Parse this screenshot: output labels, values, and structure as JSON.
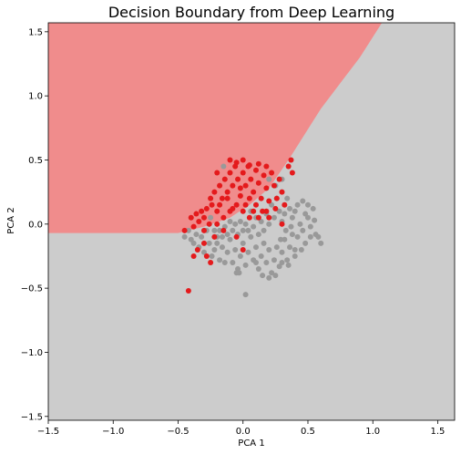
{
  "chart_data": {
    "type": "scatter",
    "title": "Decision Boundary from Deep Learning",
    "xlabel": "PCA 1",
    "ylabel": "PCA 2",
    "xlim": [
      -1.5,
      1.63
    ],
    "ylim": [
      -1.53,
      1.57
    ],
    "x_ticks": [
      "−1.5",
      "−1.0",
      "−0.5",
      "0.0",
      "0.5",
      "1.0",
      "1.5"
    ],
    "x_tick_values": [
      -1.5,
      -1.0,
      -0.5,
      0.0,
      0.5,
      1.0,
      1.5
    ],
    "y_ticks": [
      "1.5",
      "1.0",
      "0.5",
      "0.0",
      "−0.5",
      "−1.0",
      "−1.5"
    ],
    "y_tick_values": [
      1.5,
      1.0,
      0.5,
      0.0,
      -0.5,
      -1.0,
      -1.5
    ],
    "grid": false,
    "decision_regions": {
      "class_1_color": "#f08c8c",
      "class_0_color": "#cccccc",
      "boundary": [
        [
          -1.5,
          -0.07
        ],
        [
          -0.5,
          -0.07
        ],
        [
          -0.3,
          -0.02
        ],
        [
          -0.1,
          0.05
        ],
        [
          0.05,
          0.15
        ],
        [
          0.2,
          0.28
        ],
        [
          0.35,
          0.5
        ],
        [
          0.6,
          0.9
        ],
        [
          0.9,
          1.3
        ],
        [
          1.07,
          1.57
        ]
      ]
    },
    "series": [
      {
        "color": "#999999",
        "points": [
          [
            -0.45,
            -0.1
          ],
          [
            -0.42,
            -0.05
          ],
          [
            -0.4,
            -0.12
          ],
          [
            -0.38,
            -0.15
          ],
          [
            -0.36,
            -0.08
          ],
          [
            -0.34,
            -0.18
          ],
          [
            -0.32,
            -0.1
          ],
          [
            -0.3,
            -0.22
          ],
          [
            -0.28,
            -0.05
          ],
          [
            -0.26,
            -0.15
          ],
          [
            -0.24,
            -0.25
          ],
          [
            -0.22,
            -0.2
          ],
          [
            -0.2,
            -0.1
          ],
          [
            -0.18,
            -0.28
          ],
          [
            -0.16,
            -0.18
          ],
          [
            -0.14,
            -0.3
          ],
          [
            -0.12,
            -0.22
          ],
          [
            -0.1,
            -0.12
          ],
          [
            -0.08,
            -0.3
          ],
          [
            -0.06,
            -0.2
          ],
          [
            -0.04,
            -0.35
          ],
          [
            -0.02,
            -0.25
          ],
          [
            0.0,
            -0.15
          ],
          [
            0.02,
            -0.32
          ],
          [
            0.04,
            -0.22
          ],
          [
            0.06,
            -0.1
          ],
          [
            0.08,
            -0.28
          ],
          [
            0.1,
            -0.18
          ],
          [
            0.12,
            -0.35
          ],
          [
            0.14,
            -0.25
          ],
          [
            0.16,
            -0.15
          ],
          [
            0.18,
            -0.3
          ],
          [
            0.2,
            -0.2
          ],
          [
            0.22,
            -0.38
          ],
          [
            0.24,
            -0.28
          ],
          [
            0.26,
            -0.18
          ],
          [
            0.28,
            -0.33
          ],
          [
            0.3,
            -0.22
          ],
          [
            0.32,
            -0.12
          ],
          [
            0.34,
            -0.28
          ],
          [
            0.36,
            -0.18
          ],
          [
            0.38,
            -0.08
          ],
          [
            0.4,
            -0.2
          ],
          [
            0.42,
            -0.1
          ],
          [
            0.44,
            0.0
          ],
          [
            0.46,
            -0.05
          ],
          [
            0.48,
            0.08
          ],
          [
            0.5,
            0.05
          ],
          [
            0.52,
            -0.02
          ],
          [
            0.55,
            0.03
          ],
          [
            0.56,
            -0.08
          ],
          [
            0.58,
            -0.1
          ],
          [
            0.6,
            -0.15
          ],
          [
            0.54,
            0.12
          ],
          [
            0.5,
            0.15
          ],
          [
            0.46,
            0.18
          ],
          [
            0.42,
            0.15
          ],
          [
            0.4,
            0.1
          ],
          [
            0.38,
            0.05
          ],
          [
            0.36,
            0.12
          ],
          [
            0.34,
            0.2
          ],
          [
            0.32,
            0.08
          ],
          [
            0.3,
            0.02
          ],
          [
            0.28,
            0.1
          ],
          [
            0.26,
            0.2
          ],
          [
            0.24,
            0.05
          ],
          [
            0.22,
            0.15
          ],
          [
            0.2,
            0.0
          ],
          [
            0.18,
            0.08
          ],
          [
            0.16,
            -0.05
          ],
          [
            0.14,
            0.02
          ],
          [
            0.12,
            -0.08
          ],
          [
            0.1,
            0.05
          ],
          [
            0.08,
            -0.02
          ],
          [
            0.06,
            0.1
          ],
          [
            0.04,
            -0.05
          ],
          [
            0.02,
            0.0
          ],
          [
            0.0,
            -0.05
          ],
          [
            -0.02,
            0.02
          ],
          [
            -0.04,
            -0.08
          ],
          [
            -0.06,
            0.0
          ],
          [
            -0.08,
            -0.05
          ],
          [
            -0.1,
            0.02
          ],
          [
            -0.12,
            -0.08
          ],
          [
            -0.14,
            -0.02
          ],
          [
            -0.16,
            -0.1
          ],
          [
            -0.18,
            -0.05
          ],
          [
            -0.2,
            -0.15
          ],
          [
            -0.22,
            -0.05
          ],
          [
            -0.25,
            0.05
          ],
          [
            -0.15,
            0.45
          ],
          [
            0.25,
            0.3
          ],
          [
            0.3,
            0.35
          ],
          [
            0.2,
            0.35
          ],
          [
            0.15,
            -0.4
          ],
          [
            0.2,
            -0.42
          ],
          [
            0.25,
            -0.4
          ],
          [
            -0.05,
            -0.38
          ],
          [
            0.02,
            -0.55
          ],
          [
            -0.03,
            -0.38
          ],
          [
            0.1,
            -0.3
          ],
          [
            0.3,
            -0.3
          ],
          [
            0.35,
            -0.32
          ],
          [
            0.4,
            -0.25
          ],
          [
            0.45,
            -0.2
          ],
          [
            0.48,
            -0.15
          ],
          [
            0.52,
            -0.1
          ],
          [
            0.33,
            -0.05
          ],
          [
            0.37,
            -0.02
          ],
          [
            0.29,
            -0.12
          ]
        ]
      },
      {
        "color": "#e41a1c",
        "points": [
          [
            -0.42,
            -0.52
          ],
          [
            -0.45,
            -0.05
          ],
          [
            -0.4,
            0.05
          ],
          [
            -0.38,
            -0.02
          ],
          [
            -0.36,
            0.08
          ],
          [
            -0.34,
            0.02
          ],
          [
            -0.32,
            0.1
          ],
          [
            -0.3,
            0.05
          ],
          [
            -0.28,
            0.12
          ],
          [
            -0.26,
            0.0
          ],
          [
            -0.25,
            0.2
          ],
          [
            -0.24,
            0.15
          ],
          [
            -0.22,
            0.25
          ],
          [
            -0.2,
            0.1
          ],
          [
            -0.18,
            0.3
          ],
          [
            -0.16,
            0.2
          ],
          [
            -0.14,
            0.35
          ],
          [
            -0.12,
            0.25
          ],
          [
            -0.1,
            0.4
          ],
          [
            -0.08,
            0.3
          ],
          [
            -0.06,
            0.45
          ],
          [
            -0.04,
            0.35
          ],
          [
            -0.02,
            0.22
          ],
          [
            0.0,
            0.4
          ],
          [
            0.02,
            0.3
          ],
          [
            0.04,
            0.45
          ],
          [
            0.06,
            0.35
          ],
          [
            0.08,
            0.25
          ],
          [
            0.1,
            0.42
          ],
          [
            0.12,
            0.32
          ],
          [
            0.14,
            0.2
          ],
          [
            0.16,
            0.38
          ],
          [
            0.18,
            0.28
          ],
          [
            0.2,
            0.18
          ],
          [
            0.22,
            0.4
          ],
          [
            0.24,
            0.3
          ],
          [
            0.26,
            0.2
          ],
          [
            0.28,
            0.35
          ],
          [
            0.3,
            0.25
          ],
          [
            0.32,
            0.15
          ],
          [
            0.35,
            0.45
          ],
          [
            0.38,
            0.4
          ],
          [
            0.37,
            0.5
          ],
          [
            -0.1,
            0.5
          ],
          [
            -0.05,
            0.48
          ],
          [
            0.0,
            0.5
          ],
          [
            0.05,
            0.46
          ],
          [
            0.12,
            0.47
          ],
          [
            0.18,
            0.45
          ],
          [
            -0.2,
            0.4
          ],
          [
            -0.3,
            -0.15
          ],
          [
            -0.28,
            -0.25
          ],
          [
            -0.25,
            -0.3
          ],
          [
            -0.22,
            -0.1
          ],
          [
            -0.35,
            -0.2
          ],
          [
            -0.38,
            -0.25
          ],
          [
            -0.3,
            -0.05
          ],
          [
            -0.15,
            0.05
          ],
          [
            -0.1,
            0.1
          ],
          [
            -0.05,
            0.15
          ],
          [
            0.0,
            0.1
          ],
          [
            0.05,
            0.2
          ],
          [
            0.1,
            0.15
          ],
          [
            0.15,
            0.1
          ],
          [
            0.2,
            0.05
          ],
          [
            0.25,
            0.12
          ],
          [
            0.3,
            0.0
          ],
          [
            -0.2,
            0.0
          ],
          [
            -0.15,
            -0.05
          ],
          [
            -0.18,
            0.15
          ],
          [
            -0.12,
            0.2
          ],
          [
            -0.08,
            0.12
          ],
          [
            -0.02,
            0.28
          ],
          [
            0.02,
            0.15
          ],
          [
            0.08,
            0.1
          ],
          [
            0.12,
            0.05
          ],
          [
            0.18,
            0.1
          ],
          [
            0.05,
            0.05
          ],
          [
            -0.05,
            -0.1
          ],
          [
            0.0,
            -0.2
          ]
        ]
      }
    ]
  }
}
